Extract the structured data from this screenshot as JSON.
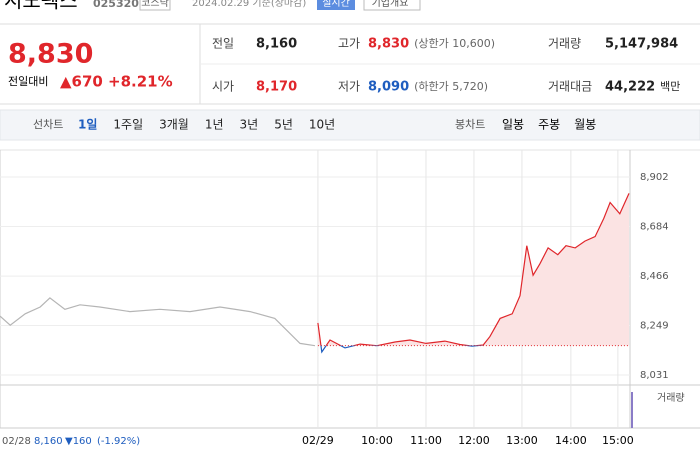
{
  "header": {
    "name": "시노펙스",
    "code": "025320",
    "market": "코스닥",
    "date": "2024.02.29 기준(장마감)",
    "realtime": "실시간",
    "company": "기업개요"
  },
  "price": {
    "now": "8,830",
    "diff_label": "전일대비",
    "diff": "▲670",
    "rate": "+8.21%"
  },
  "stats": [
    [
      "전일",
      "8,160"
    ],
    [
      "고가",
      "8,830",
      "(상한가 10,600)"
    ],
    [
      "거래량",
      "5,147,984"
    ],
    [
      "시가",
      "8,170"
    ],
    [
      "저가",
      "8,090",
      "(하한가 5,720)"
    ],
    [
      "거래대금",
      "44,222",
      "백만"
    ]
  ],
  "tabs": {
    "line_label": "선차트",
    "line": [
      "1일",
      "1주일",
      "3개월",
      "1년",
      "3년",
      "5년",
      "10년"
    ],
    "candle_label": "봉차트",
    "candle": [
      "일봉",
      "주봉",
      "월봉"
    ]
  },
  "chart_data": {
    "type": "line",
    "xlim": [
      2.2,
      15.2
    ],
    "ylim": [
      8031,
      8902
    ],
    "xticks": [
      {
        "value": 8.76,
        "label": "02/29"
      },
      {
        "value": 9.98,
        "label": "10:00"
      },
      {
        "value": 10.99,
        "label": "11:00"
      },
      {
        "value": 11.98,
        "label": "12:00"
      },
      {
        "value": 12.97,
        "label": "13:00"
      },
      {
        "value": 13.98,
        "label": "14:00"
      },
      {
        "value": 14.95,
        "label": "15:00"
      }
    ],
    "yticks": [
      {
        "value": 8031,
        "label": "8,031"
      },
      {
        "value": 8249,
        "label": "8,249"
      },
      {
        "value": 8466,
        "label": "8,466"
      },
      {
        "value": 8684,
        "label": "8,684"
      },
      {
        "value": 8902,
        "label": "8,902"
      }
    ],
    "prev_close": {
      "value": 8160,
      "label": "8,160"
    },
    "series": [
      {
        "color": "#b5b5b5",
        "x": [
          2.2,
          2.41,
          2.72,
          3.03,
          3.23,
          3.54,
          3.85,
          4.26,
          4.88,
          5.5,
          6.12,
          6.74,
          7.36,
          7.87,
          8.39,
          8.7
        ],
        "values": [
          8290,
          8250,
          8300,
          8330,
          8370,
          8320,
          8340,
          8330,
          8310,
          8320,
          8310,
          8330,
          8310,
          8280,
          8170,
          8160
        ]
      },
      {
        "color": "#e0262b",
        "down_color": "#1e5dbf",
        "fill": "#fbe3e3",
        "x": [
          8.76,
          8.84,
          9.01,
          9.32,
          9.63,
          9.98,
          10.35,
          10.66,
          10.99,
          11.38,
          11.69,
          11.94,
          12.17,
          12.31,
          12.52,
          12.77,
          12.93,
          13.07,
          13.2,
          13.34,
          13.51,
          13.71,
          13.88,
          14.07,
          14.27,
          14.48,
          14.66,
          14.79,
          14.99,
          15.18
        ],
        "values": [
          8260,
          8132,
          8185,
          8150,
          8167,
          8160,
          8176,
          8185,
          8170,
          8180,
          8165,
          8158,
          8163,
          8200,
          8280,
          8300,
          8380,
          8600,
          8470,
          8520,
          8590,
          8560,
          8600,
          8590,
          8620,
          8640,
          8720,
          8790,
          8740,
          8830
        ]
      }
    ],
    "volume_label": "거래량",
    "footer": {
      "date": "02/28",
      "diff": "▼160",
      "rate": "(-1.92%)"
    }
  }
}
